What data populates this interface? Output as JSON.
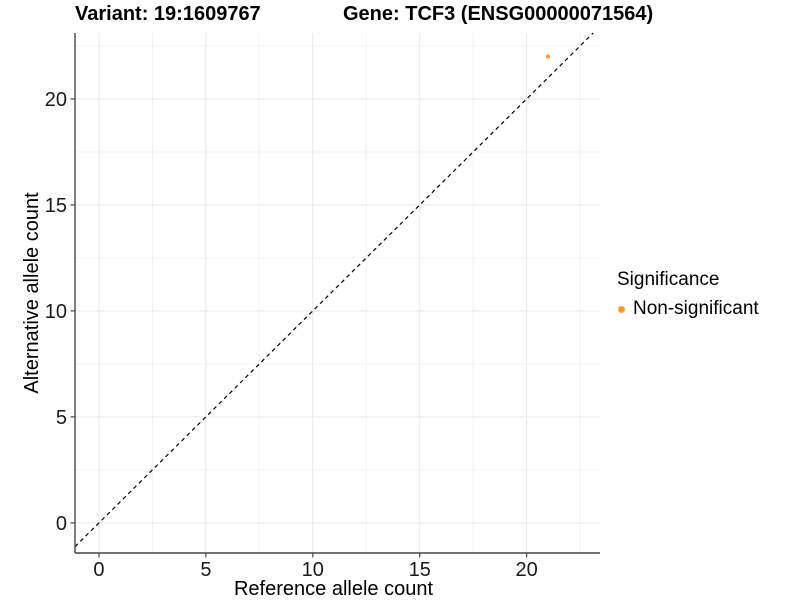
{
  "chart_data": {
    "type": "scatter",
    "titles": {
      "left": "Variant: 19:1609767",
      "right": "Gene: TCF3 (ENSG00000071564)"
    },
    "xlabel": "Reference allele count",
    "ylabel": "Alternative allele count",
    "x_ticks": [
      0,
      5,
      10,
      15,
      20
    ],
    "y_ticks": [
      0,
      5,
      10,
      15,
      20
    ],
    "x_minor_ticks": [
      2.5,
      7.5,
      12.5,
      17.5,
      22.5
    ],
    "y_minor_ticks": [
      2.5,
      7.5,
      12.5,
      17.5,
      22.5
    ],
    "xlim": [
      -1.12,
      23.43
    ],
    "ylim": [
      -1.42,
      23.11
    ],
    "grid": true,
    "points": [
      {
        "x": 21,
        "y": 22,
        "series": "Non-significant"
      }
    ],
    "reference_line": {
      "type": "identity",
      "slope": 1,
      "intercept": 0,
      "linestyle": "dashed"
    },
    "legend": {
      "position": "right",
      "title": "Significance",
      "entries": [
        {
          "label": "Non-significant",
          "color": "#FA9C2D"
        }
      ]
    },
    "colors": {
      "point": "#FA9C2D",
      "axis_line": "#464646",
      "grid_major": "#E7E7E7",
      "grid_minor": "#F3F3F3",
      "tick_label": "#1A1A1A",
      "axis_title": "#000000",
      "reference_line": "#000000",
      "background": "#FFFFFF"
    }
  }
}
